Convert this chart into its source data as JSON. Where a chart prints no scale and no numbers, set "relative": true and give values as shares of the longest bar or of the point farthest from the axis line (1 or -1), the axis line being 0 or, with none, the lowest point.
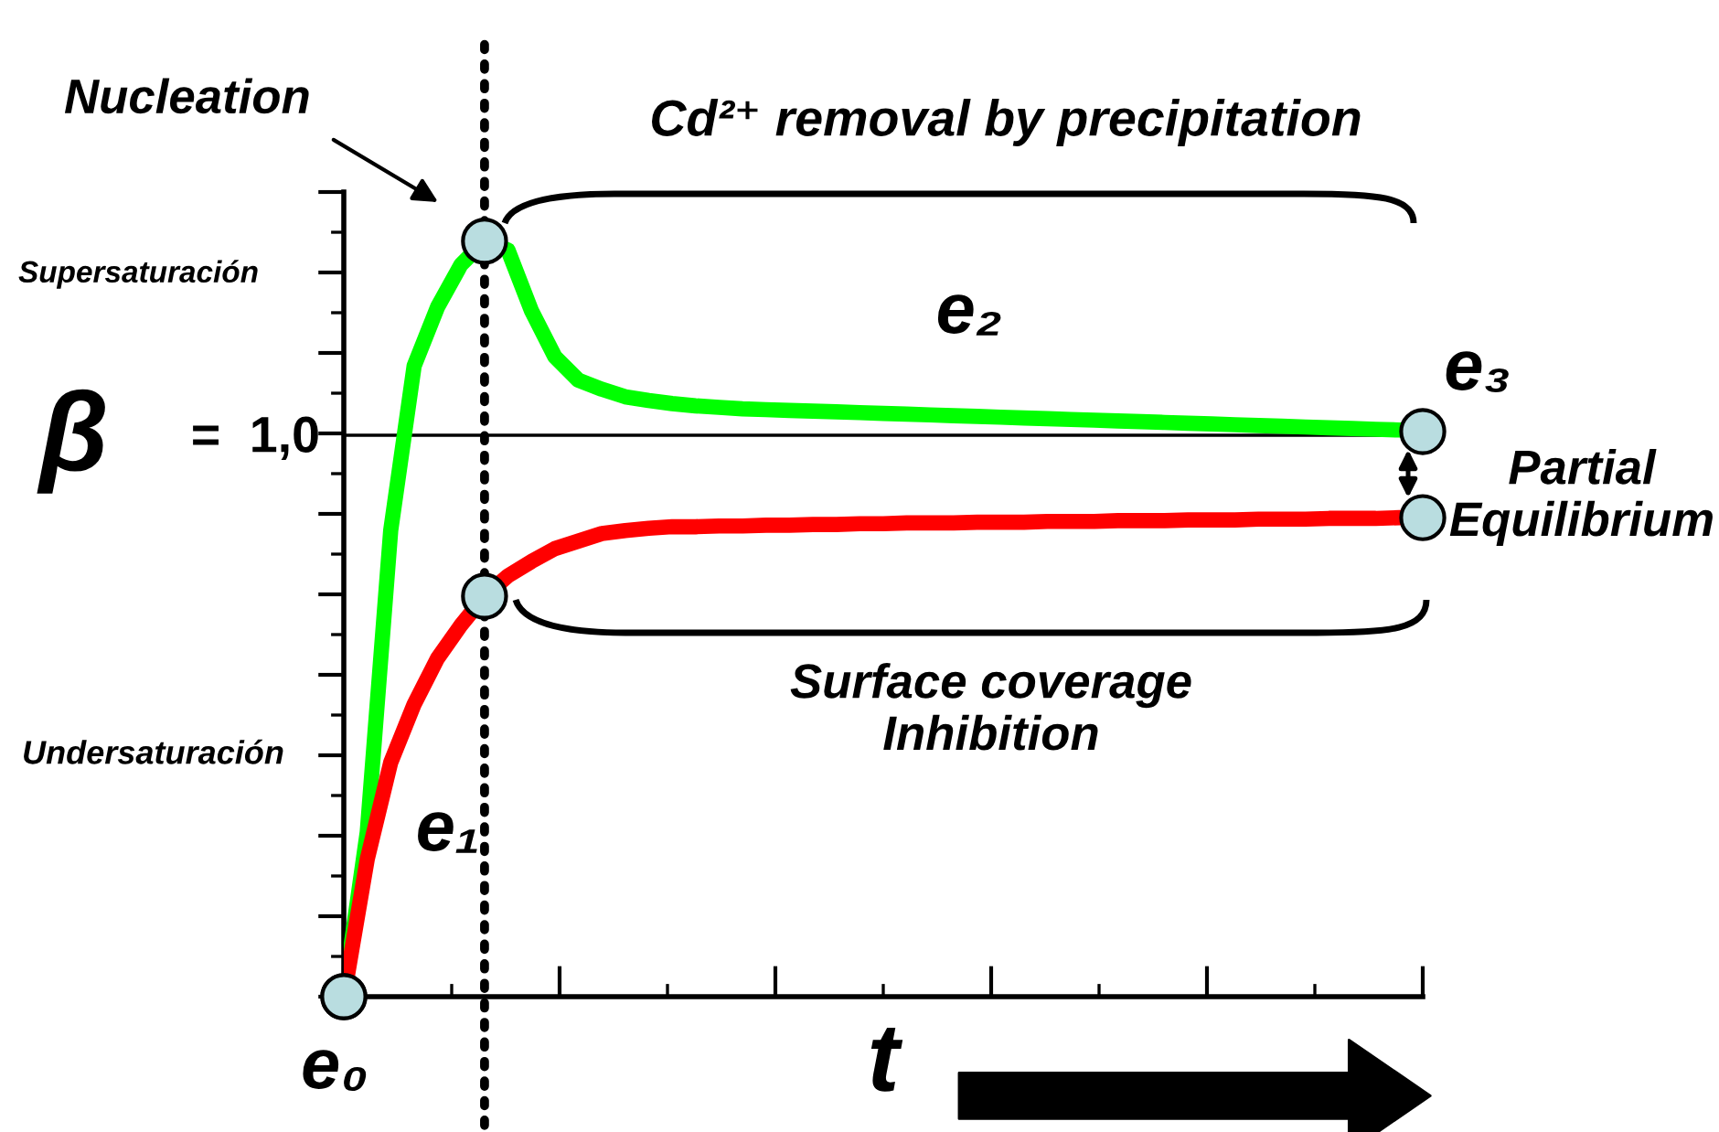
{
  "chart_data": {
    "type": "line",
    "relative": true,
    "xlabel": "t",
    "ylabel": "β",
    "tick_labels": false,
    "grid": false,
    "categories": [
      null,
      null,
      null,
      null,
      null,
      null,
      null,
      null,
      null,
      null,
      null,
      null,
      null,
      null,
      null,
      null,
      null,
      null,
      null,
      null,
      null,
      null,
      null,
      null,
      null,
      null,
      null,
      null,
      null,
      null,
      null,
      null,
      null,
      null,
      null,
      null,
      null,
      null,
      null,
      null,
      null,
      null,
      null,
      null,
      null,
      null,
      null
    ],
    "series": [
      {
        "color": "#00ff00",
        "values": [
          0,
          0.218,
          0.617,
          0.835,
          0.913,
          0.969,
          1.0,
          0.988,
          0.908,
          0.847,
          0.816,
          0.804,
          0.794,
          0.789,
          0.785,
          0.782,
          0.78,
          0.778,
          0.777,
          0.776,
          0.775,
          0.774,
          0.773,
          0.772,
          0.771,
          0.77,
          0.769,
          0.768,
          0.767,
          0.766,
          0.765,
          0.764,
          0.763,
          0.762,
          0.761,
          0.76,
          0.759,
          0.758,
          0.757,
          0.756,
          0.755,
          0.754,
          0.753,
          0.752,
          0.751,
          0.75,
          0.748
        ]
      },
      {
        "color": "#ff0000",
        "values": [
          0,
          0.182,
          0.31,
          0.387,
          0.448,
          0.492,
          0.53,
          0.557,
          0.576,
          0.593,
          0.603,
          0.613,
          0.617,
          0.62,
          0.622,
          0.622,
          0.623,
          0.623,
          0.624,
          0.624,
          0.625,
          0.625,
          0.626,
          0.626,
          0.627,
          0.627,
          0.627,
          0.628,
          0.628,
          0.628,
          0.629,
          0.629,
          0.629,
          0.63,
          0.63,
          0.63,
          0.631,
          0.631,
          0.631,
          0.632,
          0.632,
          0.632,
          0.633,
          0.633,
          0.633,
          0.634,
          0.634
        ]
      }
    ],
    "ref_lines": [
      {
        "axis": "y",
        "value": 0.743,
        "color": "#000000",
        "line_style": "solid"
      }
    ],
    "annotations": [
      "1,0",
      "Nucleation",
      "Cd²⁺ removal by precipitation",
      "Supersaturación",
      "Undersaturación",
      "=",
      "e₀",
      "e₁",
      "e₂",
      "e₃",
      "Partial\nEquilibrium",
      "Surface coverage\nInhibition"
    ]
  }
}
